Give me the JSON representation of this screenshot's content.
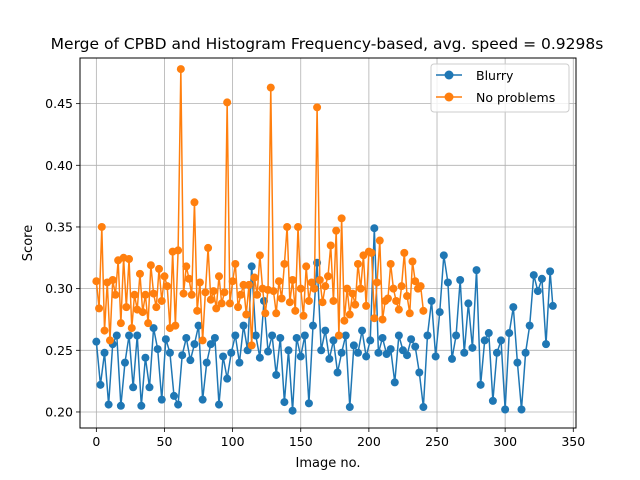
{
  "chart_data": {
    "type": "line",
    "title": "Merge of CPBD and Histogram Frequency-based, avg. speed = 0.9298s",
    "xlabel": "Image no.",
    "ylabel": "Score",
    "xlim": [
      -12,
      352
    ],
    "ylim": [
      0.187,
      0.487
    ],
    "xticks": [
      0,
      50,
      100,
      150,
      200,
      250,
      300,
      350
    ],
    "yticks": [
      0.2,
      0.25,
      0.3,
      0.35,
      0.4,
      0.45
    ],
    "xtick_labels": [
      "0",
      "50",
      "100",
      "150",
      "200",
      "250",
      "300",
      "350"
    ],
    "ytick_labels": [
      "0.20",
      "0.25",
      "0.30",
      "0.35",
      "0.40",
      "0.45"
    ],
    "grid": true,
    "legend_position": "upper right",
    "series": [
      {
        "name": "Blurry",
        "color": "#1f77b4",
        "marker": "circle",
        "x": [
          0,
          3,
          6,
          9,
          12,
          15,
          18,
          21,
          24,
          27,
          30,
          33,
          36,
          39,
          42,
          45,
          48,
          51,
          54,
          57,
          60,
          63,
          66,
          69,
          72,
          75,
          78,
          81,
          84,
          87,
          90,
          93,
          96,
          99,
          102,
          105,
          108,
          111,
          114,
          117,
          120,
          123,
          126,
          129,
          132,
          135,
          138,
          141,
          144,
          147,
          150,
          153,
          156,
          159,
          162,
          165,
          168,
          171,
          174,
          177,
          180,
          183,
          186,
          189,
          192,
          195,
          198,
          201,
          204,
          207,
          210,
          213,
          216,
          219,
          222,
          225,
          228,
          231,
          234,
          237,
          240,
          243,
          246,
          249,
          252,
          255,
          258,
          261,
          264,
          267,
          270,
          273,
          276,
          279,
          282,
          285,
          288,
          291,
          294,
          297,
          300,
          303,
          306,
          309,
          312,
          315,
          318,
          321,
          324,
          327,
          330,
          333,
          335
        ],
        "y": [
          0.257,
          0.222,
          0.248,
          0.206,
          0.255,
          0.262,
          0.205,
          0.24,
          0.262,
          0.22,
          0.262,
          0.205,
          0.244,
          0.22,
          0.268,
          0.251,
          0.21,
          0.259,
          0.248,
          0.213,
          0.206,
          0.246,
          0.26,
          0.242,
          0.255,
          0.27,
          0.21,
          0.24,
          0.255,
          0.26,
          0.206,
          0.245,
          0.227,
          0.248,
          0.262,
          0.24,
          0.27,
          0.25,
          0.318,
          0.262,
          0.244,
          0.29,
          0.249,
          0.262,
          0.23,
          0.26,
          0.208,
          0.25,
          0.201,
          0.26,
          0.245,
          0.262,
          0.207,
          0.27,
          0.321,
          0.25,
          0.266,
          0.243,
          0.258,
          0.232,
          0.248,
          0.262,
          0.204,
          0.254,
          0.248,
          0.266,
          0.245,
          0.258,
          0.349,
          0.248,
          0.26,
          0.247,
          0.251,
          0.224,
          0.262,
          0.25,
          0.246,
          0.259,
          0.253,
          0.232,
          0.204,
          0.262,
          0.29,
          0.245,
          0.281,
          0.327,
          0.305,
          0.243,
          0.262,
          0.307,
          0.248,
          0.288,
          0.252,
          0.315,
          0.222,
          0.258,
          0.264,
          0.209,
          0.248,
          0.258,
          0.202,
          0.264,
          0.285,
          0.24,
          0.202,
          0.248,
          0.27,
          0.311,
          0.298,
          0.308,
          0.255,
          0.314,
          0.286
        ],
        "y_extra_note": ""
      },
      {
        "name": "No problems",
        "color": "#ff7f0e",
        "marker": "circle",
        "x": [
          0,
          2,
          4,
          6,
          8,
          10,
          12,
          14,
          16,
          18,
          20,
          22,
          24,
          26,
          28,
          30,
          32,
          34,
          36,
          38,
          40,
          42,
          44,
          46,
          48,
          50,
          52,
          54,
          56,
          58,
          60,
          62,
          64,
          66,
          68,
          70,
          72,
          74,
          76,
          78,
          80,
          82,
          84,
          86,
          88,
          90,
          92,
          94,
          96,
          98,
          100,
          102,
          104,
          106,
          108,
          110,
          112,
          114,
          116,
          118,
          120,
          122,
          124,
          126,
          128,
          130,
          132,
          134,
          136,
          138,
          140,
          142,
          144,
          146,
          148,
          150,
          152,
          154,
          156,
          158,
          160,
          162,
          164,
          166,
          168,
          170,
          172,
          174,
          176,
          178,
          180,
          182,
          184,
          186,
          188,
          190,
          192,
          194,
          196,
          198,
          200,
          202,
          204,
          206,
          208,
          210,
          212,
          214,
          216,
          218,
          220,
          222,
          224,
          226,
          228,
          230,
          232,
          234,
          236,
          238,
          240
        ],
        "y": [
          0.306,
          0.284,
          0.35,
          0.266,
          0.305,
          0.258,
          0.307,
          0.295,
          0.323,
          0.272,
          0.325,
          0.285,
          0.324,
          0.268,
          0.295,
          0.283,
          0.312,
          0.281,
          0.295,
          0.272,
          0.319,
          0.296,
          0.285,
          0.316,
          0.29,
          0.31,
          0.302,
          0.268,
          0.33,
          0.27,
          0.331,
          0.478,
          0.296,
          0.318,
          0.308,
          0.295,
          0.37,
          0.282,
          0.305,
          0.258,
          0.297,
          0.333,
          0.291,
          0.298,
          0.284,
          0.31,
          0.288,
          0.297,
          0.451,
          0.288,
          0.306,
          0.32,
          0.285,
          0.295,
          0.303,
          0.279,
          0.303,
          0.254,
          0.309,
          0.295,
          0.327,
          0.3,
          0.28,
          0.299,
          0.463,
          0.298,
          0.28,
          0.306,
          0.292,
          0.32,
          0.35,
          0.289,
          0.307,
          0.282,
          0.35,
          0.3,
          0.278,
          0.318,
          0.29,
          0.305,
          0.3,
          0.447,
          0.307,
          0.289,
          0.302,
          0.31,
          0.335,
          0.29,
          0.347,
          0.262,
          0.357,
          0.274,
          0.3,
          0.279,
          0.296,
          0.287,
          0.32,
          0.3,
          0.327,
          0.286,
          0.33,
          0.329,
          0.276,
          0.305,
          0.339,
          0.275,
          0.29,
          0.292,
          0.32,
          0.3,
          0.29,
          0.283,
          0.302,
          0.329,
          0.294,
          0.28,
          0.322,
          0.306,
          0.3,
          0.302,
          0.282
        ]
      }
    ]
  }
}
